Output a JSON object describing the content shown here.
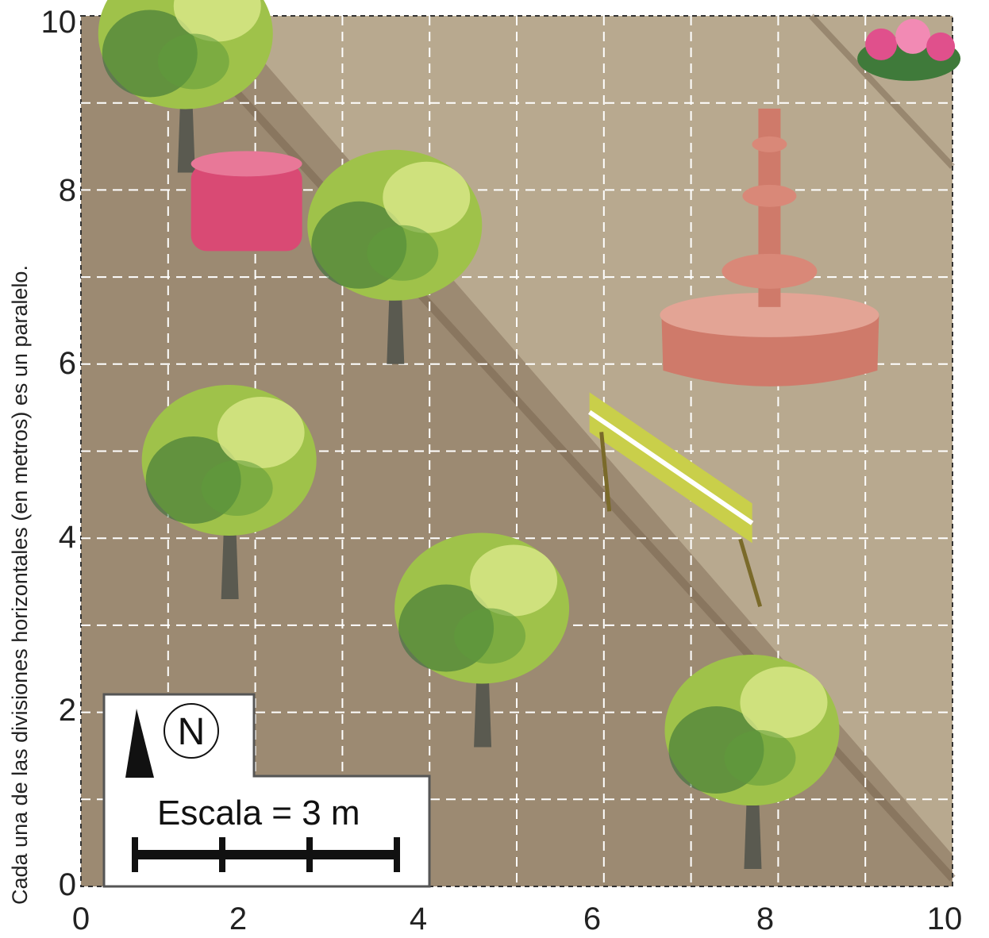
{
  "map": {
    "side_label": "Cada una de las divisiones horizontales (en metros) es un paralelo.",
    "x_ticks": [
      "0",
      "2",
      "4",
      "6",
      "8",
      "10"
    ],
    "y_ticks": [
      "0",
      "2",
      "4",
      "6",
      "8",
      "10"
    ],
    "grid_range": [
      0,
      10
    ],
    "grid_step": 1,
    "features": [
      {
        "type": "tree",
        "at": [
          1.2,
          8.2
        ]
      },
      {
        "type": "tree",
        "at": [
          3.6,
          6.0
        ]
      },
      {
        "type": "tree",
        "at": [
          1.7,
          3.3
        ]
      },
      {
        "type": "tree",
        "at": [
          4.6,
          1.6
        ]
      },
      {
        "type": "tree",
        "at": [
          7.7,
          0.2
        ]
      },
      {
        "type": "planter",
        "at": [
          1.9,
          7.8
        ]
      },
      {
        "type": "fountain",
        "at": [
          7.9,
          6.2
        ]
      },
      {
        "type": "bench",
        "at": [
          6.7,
          4.4
        ]
      },
      {
        "type": "flowers",
        "at": [
          9.5,
          9.6
        ]
      }
    ]
  },
  "legend": {
    "north_label": "N",
    "scale_label": "Escala = 3 m"
  },
  "colors": {
    "ground": "#9c8a72",
    "ground_light": "#c2b399",
    "path": "#7a6650",
    "grid": "#ffffff",
    "tree_leaf": "#9fc24a",
    "tree_dark": "#2f6b34",
    "trunk": "#5a5a50",
    "planter": "#d94a74",
    "fountain": "#cf7a6a",
    "bench": "#c9cf4a",
    "flowers": "#e0508c"
  }
}
